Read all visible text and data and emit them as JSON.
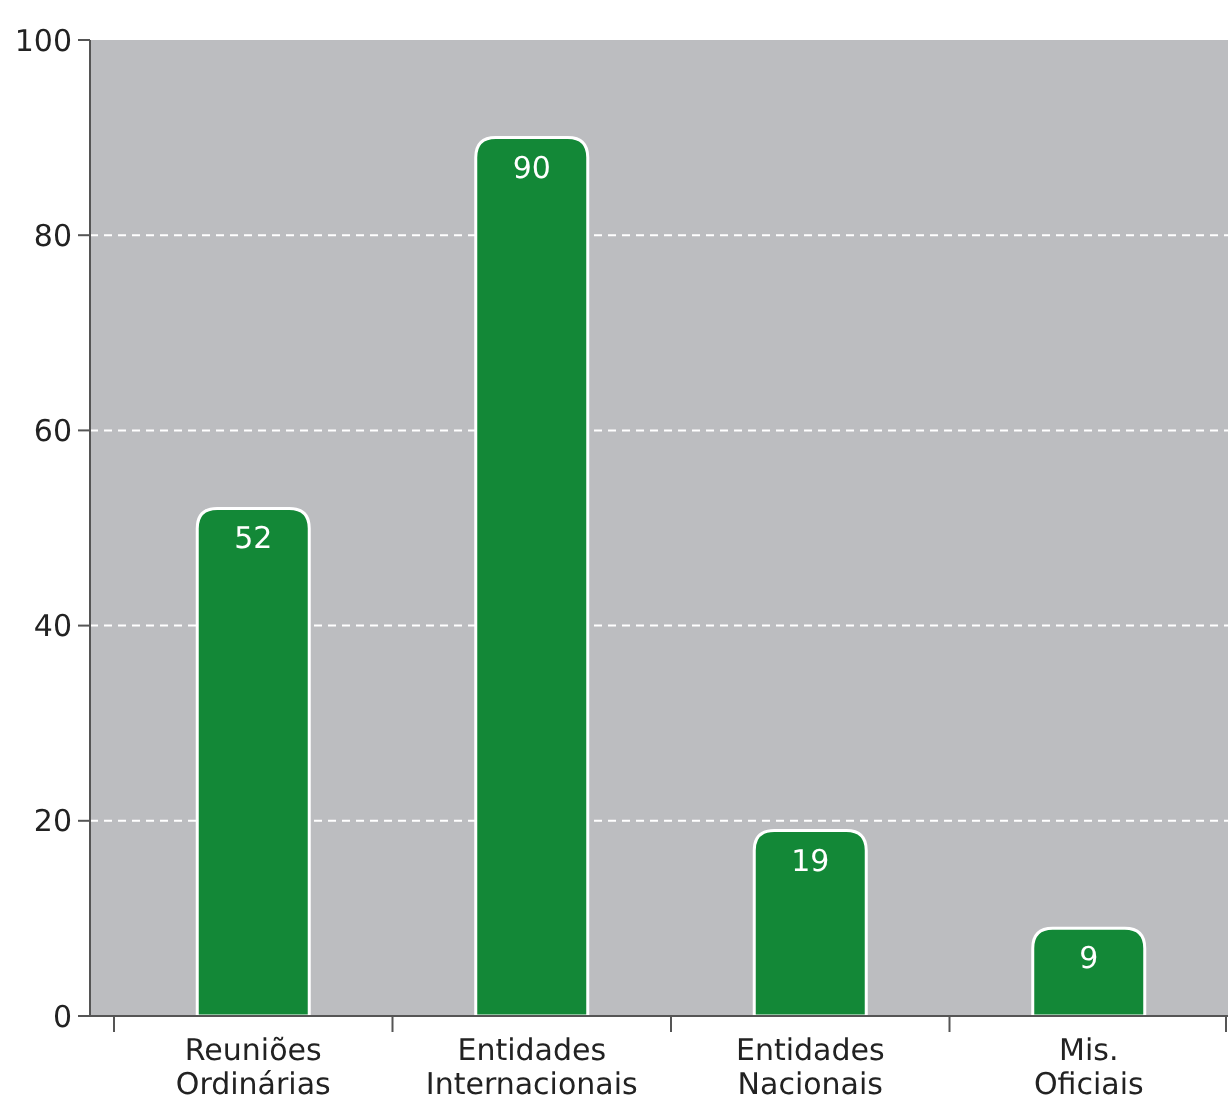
{
  "chart_data": {
    "type": "bar",
    "categories": [
      "Reuniões Ordinárias",
      "Entidades Internacionais",
      "Entidades Nacionais",
      "Mis. Oficiais"
    ],
    "values": [
      52,
      90,
      19,
      9
    ],
    "color": "#138837",
    "ylim": [
      0,
      100
    ],
    "yticks": [
      0,
      20,
      40,
      60,
      80,
      100
    ],
    "grid": "y",
    "data_labels": true
  }
}
